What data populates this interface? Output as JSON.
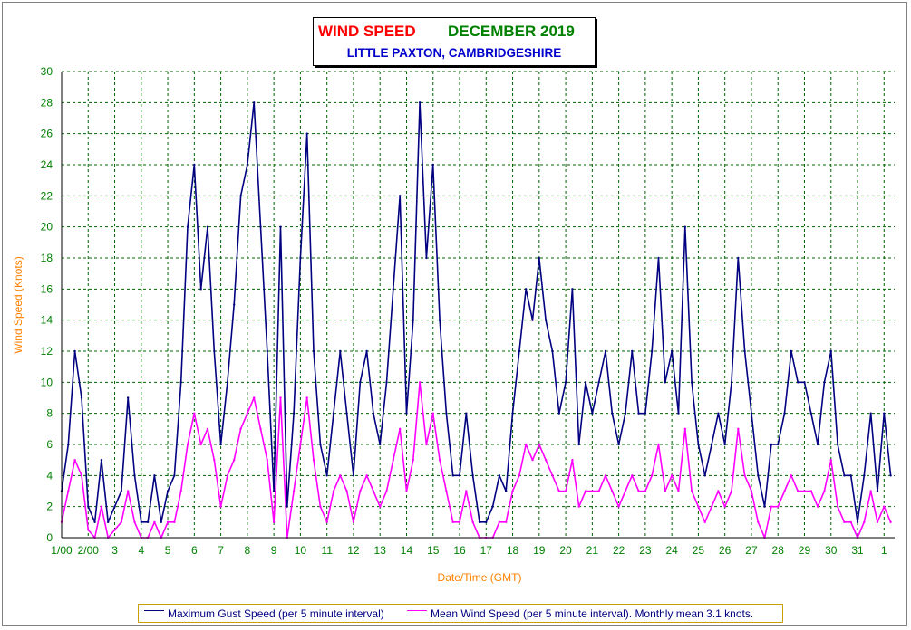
{
  "title": {
    "main_left": "WIND SPEED",
    "main_right": "DECEMBER 2019",
    "subtitle": "LITTLE PAXTON, CAMBRIDGESHIRE"
  },
  "legend": {
    "gust": "Maximum Gust Speed (per 5 minute interval)",
    "mean": "Mean Wind Speed (per 5 minute interval). Monthly mean 3.1 knots."
  },
  "colors": {
    "gust": "#000080",
    "mean": "#ff00ff",
    "grid": "#006400",
    "axis_text_x": "#008000",
    "axis_text_y": "#008000",
    "axis_label": "#ff8000"
  },
  "chart_data": {
    "type": "line",
    "title": "WIND SPEED DECEMBER 2019",
    "subtitle": "LITTLE PAXTON, CAMBRIDGESHIRE",
    "xlabel": "Date/Time (GMT)",
    "ylabel": "Wind Speed (Knots)",
    "ylim": [
      0,
      30
    ],
    "yticks": [
      0,
      2,
      4,
      6,
      8,
      10,
      12,
      14,
      16,
      18,
      20,
      22,
      24,
      26,
      28,
      30
    ],
    "xlim": [
      1,
      32.4
    ],
    "xtick_labels": [
      "1/00",
      "2/00",
      "3",
      "4",
      "5",
      "6",
      "7",
      "8",
      "9",
      "10",
      "11",
      "12",
      "13",
      "14",
      "15",
      "16",
      "17",
      "18",
      "19",
      "20",
      "21",
      "22",
      "23",
      "24",
      "25",
      "26",
      "27",
      "28",
      "29",
      "30",
      "31",
      "1"
    ],
    "grid": true,
    "series": [
      {
        "name": "Maximum Gust Speed (per 5 minute interval)",
        "x": [
          1.0,
          1.25,
          1.5,
          1.75,
          2.0,
          2.25,
          2.5,
          2.75,
          3.0,
          3.25,
          3.5,
          3.75,
          4.0,
          4.25,
          4.5,
          4.75,
          5.0,
          5.25,
          5.5,
          5.75,
          6.0,
          6.25,
          6.5,
          6.75,
          7.0,
          7.25,
          7.5,
          7.75,
          8.0,
          8.25,
          8.5,
          8.75,
          9.0,
          9.25,
          9.5,
          9.75,
          10.0,
          10.25,
          10.5,
          10.75,
          11.0,
          11.25,
          11.5,
          11.75,
          12.0,
          12.25,
          12.5,
          12.75,
          13.0,
          13.25,
          13.5,
          13.75,
          14.0,
          14.25,
          14.5,
          14.75,
          15.0,
          15.25,
          15.5,
          15.75,
          16.0,
          16.25,
          16.5,
          16.75,
          17.0,
          17.25,
          17.5,
          17.75,
          18.0,
          18.25,
          18.5,
          18.75,
          19.0,
          19.25,
          19.5,
          19.75,
          20.0,
          20.25,
          20.5,
          20.75,
          21.0,
          21.25,
          21.5,
          21.75,
          22.0,
          22.25,
          22.5,
          22.75,
          23.0,
          23.25,
          23.5,
          23.75,
          24.0,
          24.25,
          24.5,
          24.75,
          25.0,
          25.25,
          25.5,
          25.75,
          26.0,
          26.25,
          26.5,
          26.75,
          27.0,
          27.25,
          27.5,
          27.75,
          28.0,
          28.25,
          28.5,
          28.75,
          29.0,
          29.25,
          29.5,
          29.75,
          30.0,
          30.25,
          30.5,
          30.75,
          31.0,
          31.25,
          31.5,
          31.75,
          32.0,
          32.25
        ],
        "values": [
          3,
          6,
          12,
          9,
          2,
          1,
          5,
          1,
          2,
          3,
          9,
          4,
          1,
          1,
          4,
          1,
          3,
          4,
          10,
          20,
          24,
          16,
          20,
          12,
          6,
          10,
          15,
          22,
          24,
          28,
          20,
          12,
          3,
          20,
          2,
          8,
          18,
          26,
          12,
          6,
          4,
          8,
          12,
          8,
          4,
          10,
          12,
          8,
          6,
          10,
          16,
          22,
          8,
          14,
          28,
          18,
          24,
          14,
          8,
          4,
          4,
          8,
          4,
          1,
          1,
          2,
          4,
          3,
          8,
          12,
          16,
          14,
          18,
          14,
          12,
          8,
          10,
          16,
          6,
          10,
          8,
          10,
          12,
          8,
          6,
          8,
          12,
          8,
          8,
          12,
          18,
          10,
          12,
          8,
          20,
          10,
          6,
          4,
          6,
          8,
          6,
          10,
          18,
          12,
          8,
          4,
          2,
          6,
          6,
          8,
          12,
          10,
          10,
          8,
          6,
          10,
          12,
          6,
          4,
          4,
          1,
          4,
          8,
          3,
          8,
          4
        ]
      },
      {
        "name": "Mean Wind Speed (per 5 minute interval). Monthly mean 3.1 knots.",
        "x": [
          1.0,
          1.25,
          1.5,
          1.75,
          2.0,
          2.25,
          2.5,
          2.75,
          3.0,
          3.25,
          3.5,
          3.75,
          4.0,
          4.25,
          4.5,
          4.75,
          5.0,
          5.25,
          5.5,
          5.75,
          6.0,
          6.25,
          6.5,
          6.75,
          7.0,
          7.25,
          7.5,
          7.75,
          8.0,
          8.25,
          8.5,
          8.75,
          9.0,
          9.25,
          9.5,
          9.75,
          10.0,
          10.25,
          10.5,
          10.75,
          11.0,
          11.25,
          11.5,
          11.75,
          12.0,
          12.25,
          12.5,
          12.75,
          13.0,
          13.25,
          13.5,
          13.75,
          14.0,
          14.25,
          14.5,
          14.75,
          15.0,
          15.25,
          15.5,
          15.75,
          16.0,
          16.25,
          16.5,
          16.75,
          17.0,
          17.25,
          17.5,
          17.75,
          18.0,
          18.25,
          18.5,
          18.75,
          19.0,
          19.25,
          19.5,
          19.75,
          20.0,
          20.25,
          20.5,
          20.75,
          21.0,
          21.25,
          21.5,
          21.75,
          22.0,
          22.25,
          22.5,
          22.75,
          23.0,
          23.25,
          23.5,
          23.75,
          24.0,
          24.25,
          24.5,
          24.75,
          25.0,
          25.25,
          25.5,
          25.75,
          26.0,
          26.25,
          26.5,
          26.75,
          27.0,
          27.25,
          27.5,
          27.75,
          28.0,
          28.25,
          28.5,
          28.75,
          29.0,
          29.25,
          29.5,
          29.75,
          30.0,
          30.25,
          30.5,
          30.75,
          31.0,
          31.25,
          31.5,
          31.75,
          32.0,
          32.25
        ],
        "values": [
          1,
          3,
          5,
          4,
          0.5,
          0,
          2,
          0,
          0.5,
          1,
          3,
          1,
          0,
          0,
          1,
          0,
          1,
          1,
          3,
          6,
          8,
          6,
          7,
          5,
          2,
          4,
          5,
          7,
          8,
          9,
          7,
          5,
          1,
          9,
          0,
          3,
          6,
          9,
          5,
          2,
          1,
          3,
          4,
          3,
          1,
          3,
          4,
          3,
          2,
          3,
          5,
          7,
          3,
          5,
          10,
          6,
          8,
          5,
          3,
          1,
          1,
          3,
          1,
          0,
          0,
          0,
          1,
          1,
          3,
          4,
          6,
          5,
          6,
          5,
          4,
          3,
          3,
          5,
          2,
          3,
          3,
          3,
          4,
          3,
          2,
          3,
          4,
          3,
          3,
          4,
          6,
          3,
          4,
          3,
          7,
          3,
          2,
          1,
          2,
          3,
          2,
          3,
          7,
          4,
          3,
          1,
          0,
          2,
          2,
          3,
          4,
          3,
          3,
          3,
          2,
          3,
          5,
          2,
          1,
          1,
          0,
          1,
          3,
          1,
          2,
          1
        ]
      }
    ]
  }
}
